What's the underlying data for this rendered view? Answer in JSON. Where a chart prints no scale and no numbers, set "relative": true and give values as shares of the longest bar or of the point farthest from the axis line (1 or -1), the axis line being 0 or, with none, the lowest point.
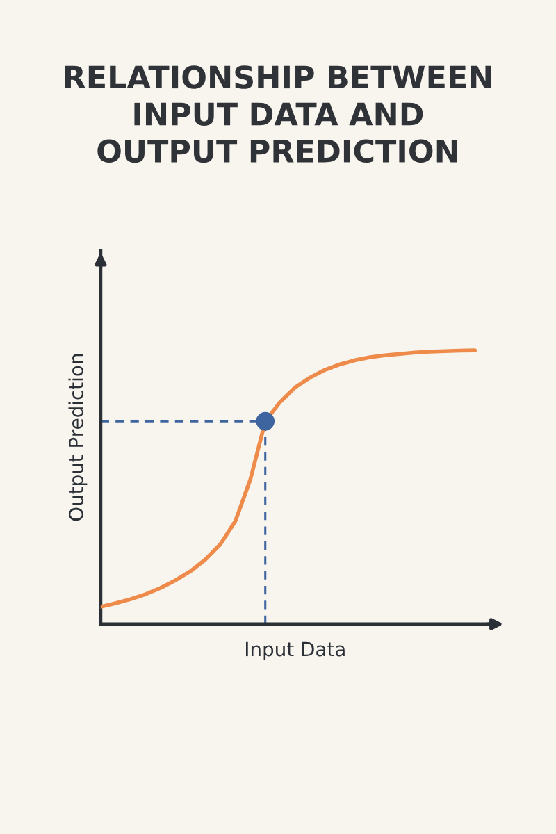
{
  "chart_data": {
    "type": "line",
    "title": "RELATIONSHIP BETWEEN\nINPUT DATA AND\nOUTPUT PREDICTION",
    "xlabel": "Input Data",
    "ylabel": "Output Prediction",
    "relative": true,
    "categories": [
      null,
      null,
      null,
      null,
      null,
      null,
      null,
      null,
      null,
      null,
      null,
      null,
      null,
      null,
      null,
      null,
      null,
      null,
      null,
      null,
      null,
      null,
      null,
      null,
      null,
      null
    ],
    "series": [
      {
        "color": "#ee8a4a",
        "values": [
          0.063,
          0.076,
          0.091,
          0.109,
          0.132,
          0.16,
          0.193,
          0.236,
          0.292,
          0.376,
          0.528,
          0.741,
          0.812,
          0.865,
          0.901,
          0.929,
          0.949,
          0.964,
          0.975,
          0.982,
          0.987,
          0.992,
          0.995,
          0.997,
          0.999,
          1
        ]
      }
    ],
    "ref_lines": [
      {
        "axis": "y",
        "value": 0.741,
        "color": "#3e65a0",
        "line_style": "dashed"
      }
    ]
  }
}
